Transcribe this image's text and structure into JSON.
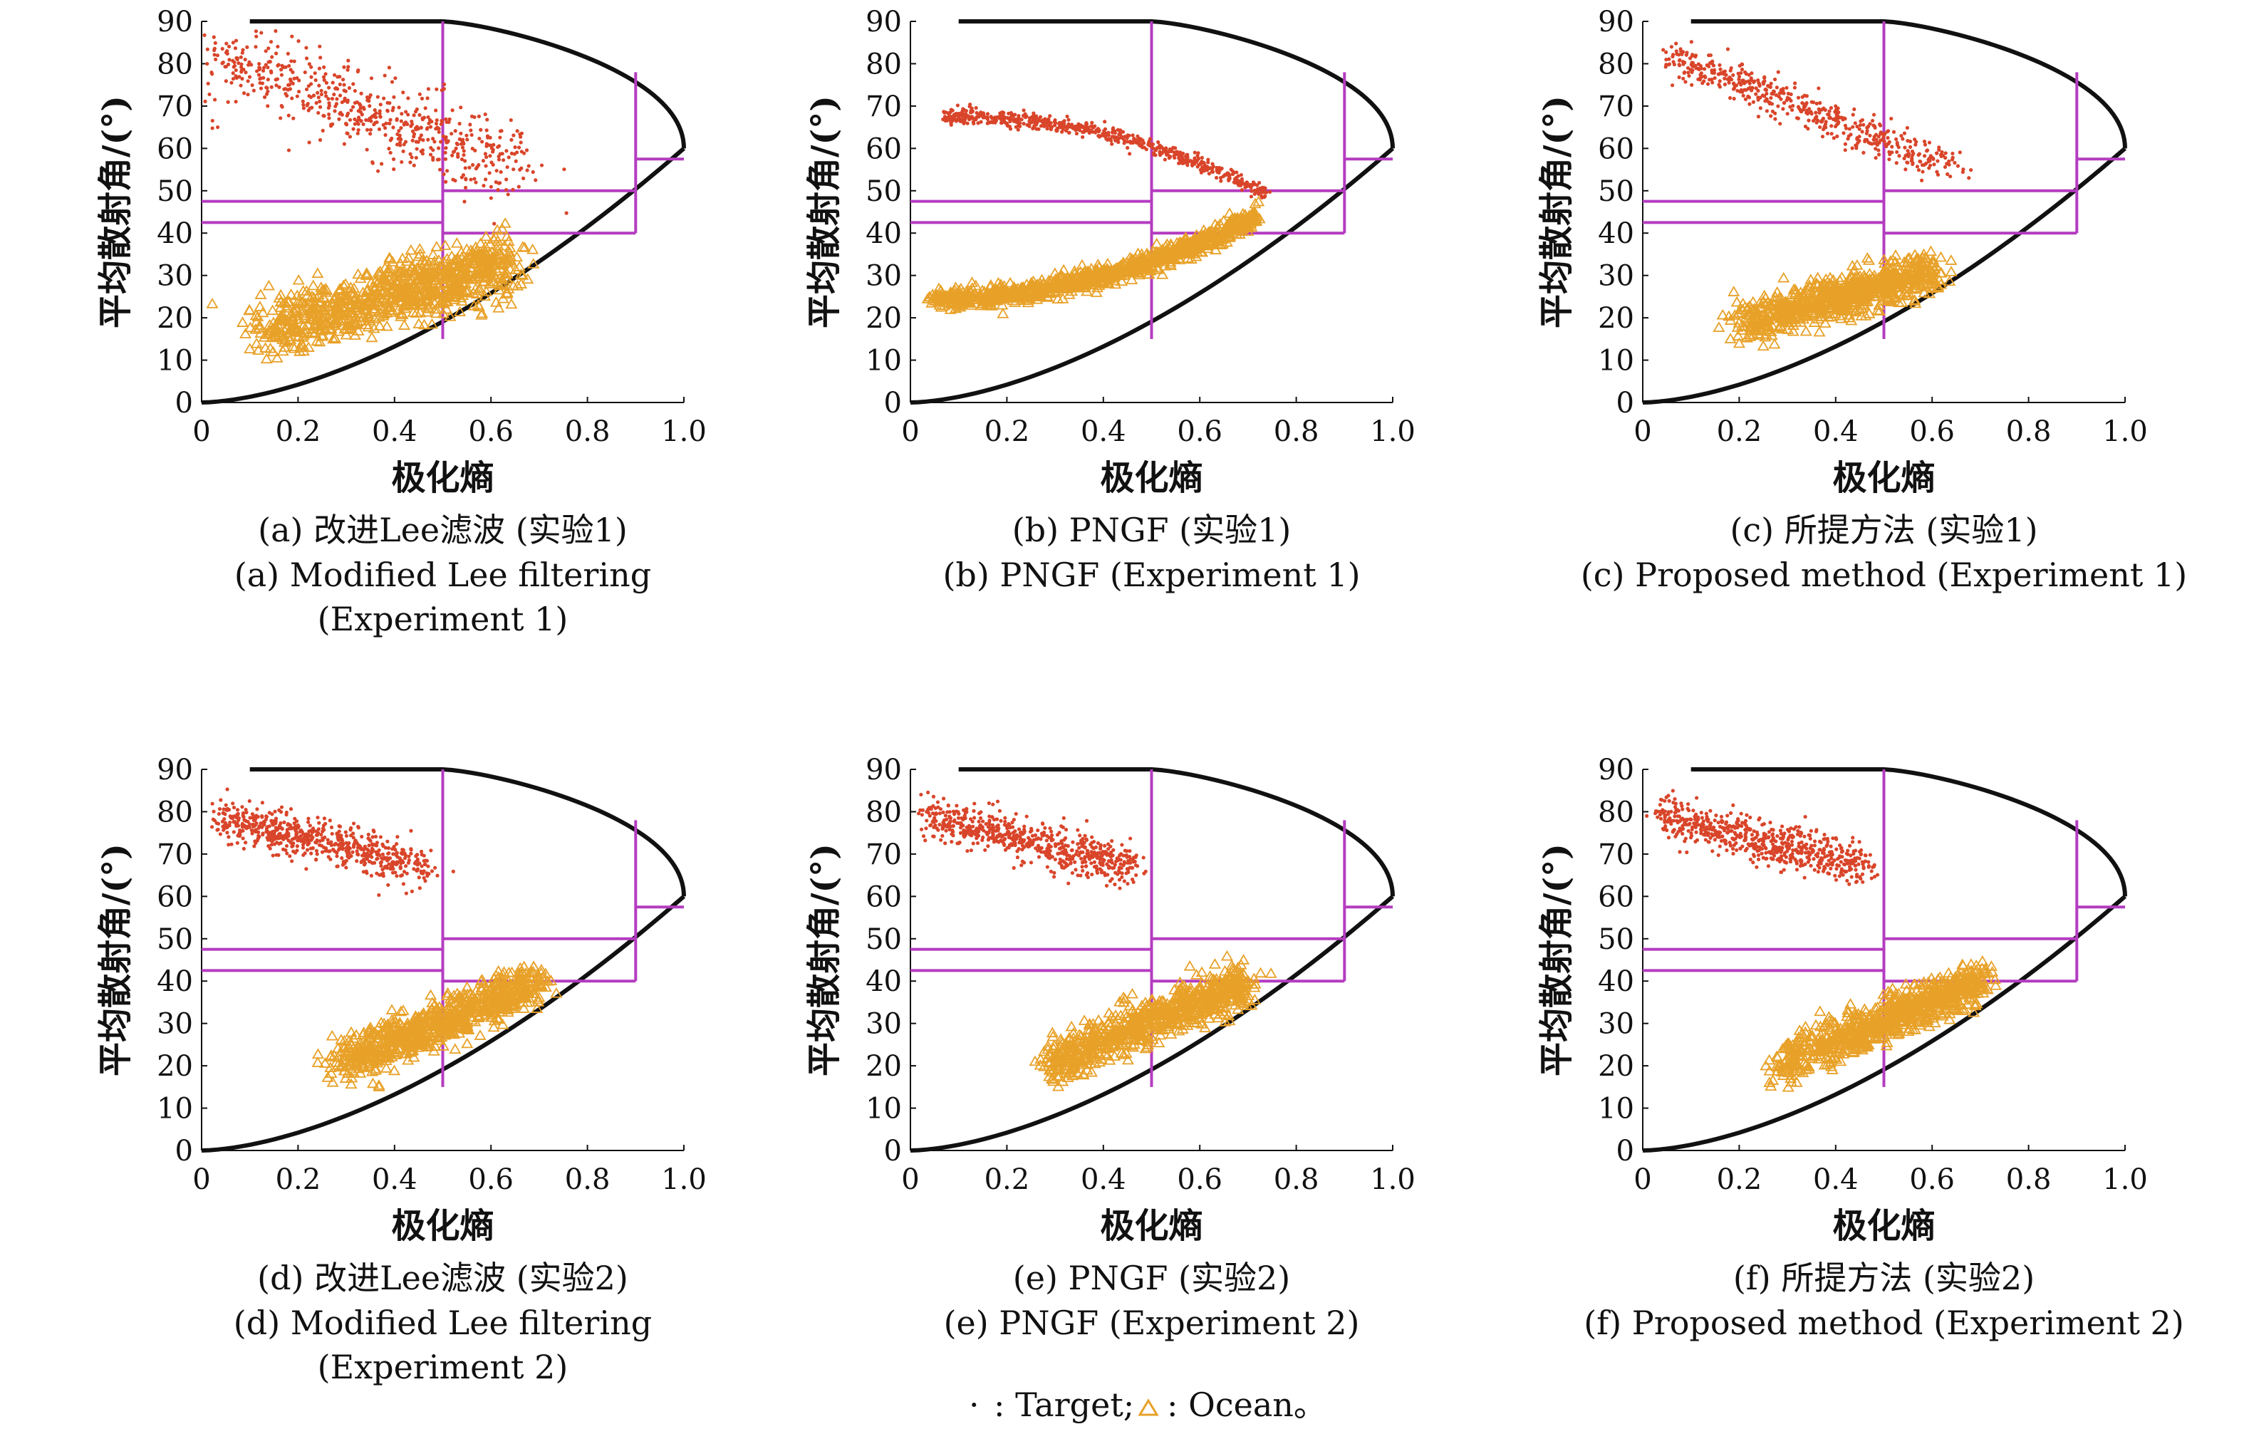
{
  "legend": {
    "target_marker": "·",
    "target_label": ": Target;",
    "ocean_label": ": Ocean。"
  },
  "colors": {
    "target": "#d9452a",
    "ocean": "#e8a128",
    "zones": "#b43cc0",
    "boundary": "#111111"
  },
  "chart_data": [
    {
      "type": "scatter",
      "panel": "a",
      "xlabel": "极化熵",
      "ylabel": "平均散射角/(°)",
      "xlim": [
        0,
        1.0
      ],
      "ylim": [
        0,
        90
      ],
      "xticks": [
        "0",
        "0.2",
        "0.4",
        "0.6",
        "0.8",
        "1.0"
      ],
      "yticks": [
        "0",
        "10",
        "20",
        "30",
        "40",
        "50",
        "60",
        "70",
        "80",
        "90"
      ],
      "caption_cn": "(a) 改进Lee滤波 (实验1)",
      "caption_en": [
        "(a) Modified Lee filtering",
        "(Experiment 1)"
      ],
      "series": [
        {
          "name": "Target",
          "marker": "dot",
          "x_range": [
            0.02,
            0.67
          ],
          "y_start": 82,
          "y_end": 55,
          "spread_x": 0.08,
          "spread_y": 4.5,
          "n": 620
        },
        {
          "name": "Ocean",
          "marker": "triangle",
          "x_range": [
            0.13,
            0.64
          ],
          "y_start": 17,
          "y_end": 33,
          "spread_x": 0.06,
          "spread_y": 3.5,
          "n": 900
        }
      ]
    },
    {
      "type": "scatter",
      "panel": "b",
      "xlabel": "极化熵",
      "ylabel": "平均散射角/(°)",
      "xlim": [
        0,
        1.0
      ],
      "ylim": [
        0,
        90
      ],
      "xticks": [
        "0",
        "0.2",
        "0.4",
        "0.6",
        "0.8",
        "1.0"
      ],
      "yticks": [
        "0",
        "10",
        "20",
        "30",
        "40",
        "50",
        "60",
        "70",
        "80",
        "90"
      ],
      "caption_cn": "(b) PNGF (实验1)",
      "caption_en": [
        "(b) PNGF (Experiment 1)"
      ],
      "series": [
        {
          "name": "Target",
          "marker": "dot",
          "x_range": [
            0.07,
            0.74
          ],
          "y_start": 67.5,
          "y_end": 49,
          "curve": 2.2,
          "spread_x": 0.01,
          "spread_y": 0.9,
          "n": 700
        },
        {
          "name": "Ocean",
          "marker": "triangle",
          "x_range": [
            0.04,
            0.72
          ],
          "y_start": 24.5,
          "y_end": 44,
          "curve": 2.0,
          "spread_x": 0.01,
          "spread_y": 1.2,
          "n": 1000
        }
      ]
    },
    {
      "type": "scatter",
      "panel": "c",
      "xlabel": "极化熵",
      "ylabel": "平均散射角/(°)",
      "xlim": [
        0,
        1.0
      ],
      "ylim": [
        0,
        90
      ],
      "xticks": [
        "0",
        "0.2",
        "0.4",
        "0.6",
        "0.8",
        "1.0"
      ],
      "yticks": [
        "0",
        "10",
        "20",
        "30",
        "40",
        "50",
        "60",
        "70",
        "80",
        "90"
      ],
      "caption_cn": "(c) 所提方法 (实验1)",
      "caption_en": [
        "(c) Proposed method (Experiment 1)"
      ],
      "series": [
        {
          "name": "Target",
          "marker": "dot",
          "x_range": [
            0.05,
            0.65
          ],
          "y_start": 82,
          "y_end": 55,
          "spread_x": 0.04,
          "spread_y": 2.0,
          "n": 520
        },
        {
          "name": "Ocean",
          "marker": "triangle",
          "x_range": [
            0.2,
            0.6
          ],
          "y_start": 19,
          "y_end": 31,
          "spread_x": 0.04,
          "spread_y": 2.5,
          "n": 800
        }
      ]
    },
    {
      "type": "scatter",
      "panel": "d",
      "xlabel": "极化熵",
      "ylabel": "平均散射角/(°)",
      "xlim": [
        0,
        1.0
      ],
      "ylim": [
        0,
        90
      ],
      "xticks": [
        "0",
        "0.2",
        "0.4",
        "0.6",
        "0.8",
        "1.0"
      ],
      "yticks": [
        "0",
        "10",
        "20",
        "30",
        "40",
        "50",
        "60",
        "70",
        "80",
        "90"
      ],
      "caption_cn": "(d) 改进Lee滤波 (实验2)",
      "caption_en": [
        "(d) Modified Lee filtering",
        "(Experiment 2)"
      ],
      "series": [
        {
          "name": "Target",
          "marker": "dot",
          "x_range": [
            0.03,
            0.47
          ],
          "y_start": 79,
          "y_end": 67,
          "spread_x": 0.03,
          "spread_y": 2.5,
          "n": 650
        },
        {
          "name": "Ocean",
          "marker": "triangle",
          "x_range": [
            0.28,
            0.7
          ],
          "y_start": 20,
          "y_end": 40,
          "spread_x": 0.04,
          "spread_y": 2.5,
          "n": 800
        }
      ]
    },
    {
      "type": "scatter",
      "panel": "e",
      "xlabel": "极化熵",
      "ylabel": "平均散射角/(°)",
      "xlim": [
        0,
        1.0
      ],
      "ylim": [
        0,
        90
      ],
      "xticks": [
        "0",
        "0.2",
        "0.4",
        "0.6",
        "0.8",
        "1.0"
      ],
      "yticks": [
        "0",
        "10",
        "20",
        "30",
        "40",
        "50",
        "60",
        "70",
        "80",
        "90"
      ],
      "caption_cn": "(e) PNGF (实验2)",
      "caption_en": [
        "(e) PNGF (Experiment 2)"
      ],
      "series": [
        {
          "name": "Target",
          "marker": "dot",
          "x_range": [
            0.03,
            0.47
          ],
          "y_start": 79,
          "y_end": 67,
          "spread_x": 0.03,
          "spread_y": 2.5,
          "n": 650
        },
        {
          "name": "Ocean",
          "marker": "triangle",
          "x_range": [
            0.28,
            0.7
          ],
          "y_start": 20,
          "y_end": 40,
          "spread_x": 0.04,
          "spread_y": 2.5,
          "n": 800
        }
      ]
    },
    {
      "type": "scatter",
      "panel": "f",
      "xlabel": "极化熵",
      "ylabel": "平均散射角/(°)",
      "xlim": [
        0,
        1.0
      ],
      "ylim": [
        0,
        90
      ],
      "xticks": [
        "0",
        "0.2",
        "0.4",
        "0.6",
        "0.8",
        "1.0"
      ],
      "yticks": [
        "0",
        "10",
        "20",
        "30",
        "40",
        "50",
        "60",
        "70",
        "80",
        "90"
      ],
      "caption_cn": "(f) 所提方法 (实验2)",
      "caption_en": [
        "(f) Proposed method (Experiment 2)"
      ],
      "series": [
        {
          "name": "Target",
          "marker": "dot",
          "x_range": [
            0.03,
            0.47
          ],
          "y_start": 79,
          "y_end": 67,
          "spread_x": 0.03,
          "spread_y": 2.5,
          "n": 650
        },
        {
          "name": "Ocean",
          "marker": "triangle",
          "x_range": [
            0.28,
            0.7
          ],
          "y_start": 20,
          "y_end": 40,
          "spread_x": 0.04,
          "spread_y": 2.5,
          "n": 800
        }
      ]
    }
  ],
  "zone_lines": {
    "vertical": [
      {
        "x": 0.5,
        "y_min": 15,
        "y_max": 90
      },
      {
        "x": 0.9,
        "y_min": 40,
        "y_max": 78
      }
    ],
    "horizontal": [
      {
        "y": 47.5,
        "x_min": 0.0,
        "x_max": 0.5
      },
      {
        "y": 42.5,
        "x_min": 0.0,
        "x_max": 0.5
      },
      {
        "y": 50,
        "x_min": 0.5,
        "x_max": 0.9
      },
      {
        "y": 40,
        "x_min": 0.5,
        "x_max": 0.9
      },
      {
        "y": 57.5,
        "x_min": 0.9,
        "x_max": 1.0
      }
    ]
  }
}
